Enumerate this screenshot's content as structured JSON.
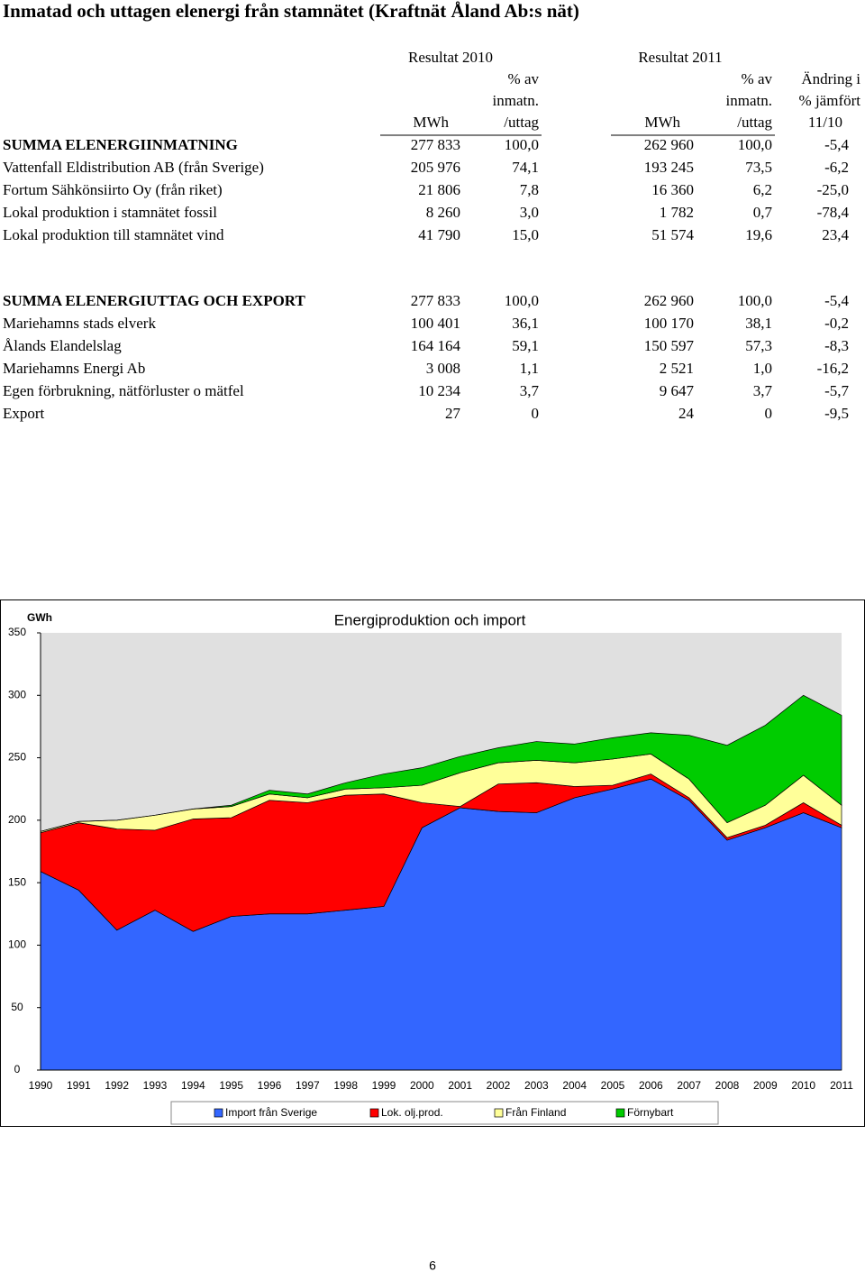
{
  "title": "Inmatad och uttagen elenergi från stamnätet (Kraftnät Åland Ab:s nät)",
  "table": {
    "group_headers": [
      "Resultat 2010",
      "Resultat 2011"
    ],
    "column_headers": [
      [
        "MWh"
      ],
      [
        "% av",
        "inmatn.",
        "/uttag"
      ],
      [
        "MWh"
      ],
      [
        "% av",
        "inmatn.",
        "/uttag"
      ],
      [
        "Ändring i",
        "% jämfört",
        "11/10"
      ]
    ],
    "sections": [
      [
        [
          "SUMMA ELENERGIINMATNING",
          "277 833",
          "100,0",
          "262 960",
          "100,0",
          "-5,4"
        ],
        [
          "Vattenfall Eldistribution AB (från Sverige)",
          "205 976",
          "74,1",
          "193 245",
          "73,5",
          "-6,2"
        ],
        [
          "Fortum Sähkönsiirto Oy (från riket)",
          "21 806",
          "7,8",
          "16 360",
          "6,2",
          "-25,0"
        ],
        [
          "Lokal produktion i stamnätet fossil",
          "8 260",
          "3,0",
          "1 782",
          "0,7",
          "-78,4"
        ],
        [
          "Lokal produktion till stamnätet vind",
          "41 790",
          "15,0",
          "51 574",
          "19,6",
          "23,4"
        ]
      ],
      [
        [
          "SUMMA ELENERGIUTTAG OCH EXPORT",
          "277 833",
          "100,0",
          "262 960",
          "100,0",
          "-5,4"
        ],
        [
          "Mariehamns stads elverk",
          "100 401",
          "36,1",
          "100 170",
          "38,1",
          "-0,2"
        ],
        [
          "Ålands Elandelslag",
          "164 164",
          "59,1",
          "150 597",
          "57,3",
          "-8,3"
        ],
        [
          "Mariehamns Energi Ab",
          "3 008",
          "1,1",
          "2 521",
          "1,0",
          "-16,2"
        ],
        [
          "Egen förbrukning, nätförluster o mätfel",
          "10 234",
          "3,7",
          "9 647",
          "3,7",
          "-5,7"
        ],
        [
          "Export",
          "27",
          "0",
          "24",
          "0",
          "-9,5"
        ]
      ]
    ]
  },
  "chart_data": {
    "type": "stacked-area",
    "title": "Energiproduktion och import",
    "y_label": "GWh",
    "categories": [
      "1990",
      "1991",
      "1992",
      "1993",
      "1994",
      "1995",
      "1996",
      "1997",
      "1998",
      "1999",
      "2000",
      "2001",
      "2002",
      "2003",
      "2004",
      "2005",
      "2006",
      "2007",
      "2008",
      "2009",
      "2010",
      "2011"
    ],
    "series": [
      {
        "name": "Import från Sverige",
        "color": "#3366ff",
        "values": [
          159,
          144,
          112,
          128,
          111,
          123,
          125,
          125,
          128,
          131,
          194,
          210,
          207,
          206,
          218,
          225,
          233,
          216,
          184,
          194,
          206,
          194
        ]
      },
      {
        "name": "Lok. olj.prod.",
        "color": "#ff0000",
        "values": [
          31,
          54,
          81,
          64,
          90,
          79,
          91,
          89,
          92,
          90,
          20,
          1,
          22,
          24,
          9,
          3,
          4,
          2,
          2,
          2,
          8,
          2
        ]
      },
      {
        "name": "Från Finland",
        "color": "#ffff99",
        "values": [
          1,
          1,
          7,
          12,
          8,
          9,
          5,
          4,
          5,
          5,
          14,
          27,
          17,
          18,
          19,
          21,
          16,
          15,
          12,
          16,
          22,
          16
        ]
      },
      {
        "name": "Förnybart",
        "color": "#00cc00",
        "values": [
          0,
          0,
          0,
          0,
          0,
          1,
          3,
          3,
          5,
          11,
          14,
          13,
          12,
          15,
          15,
          17,
          17,
          35,
          62,
          64,
          64,
          72
        ]
      }
    ],
    "ylim": [
      0,
      350
    ],
    "yticks": [
      0,
      50,
      100,
      150,
      200,
      250,
      300,
      350
    ]
  },
  "page_number": "6"
}
